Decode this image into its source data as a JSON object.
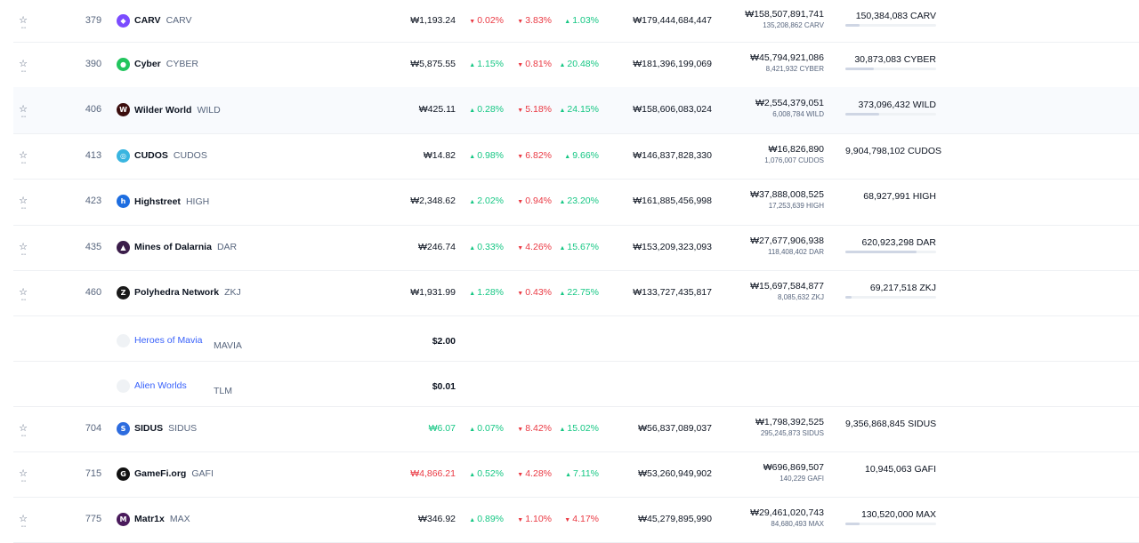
{
  "rows": [
    {
      "rank": "379",
      "name": "CARV",
      "symbol": "CARV",
      "logo_color": "#7b4cff",
      "logo_glyph": "◆",
      "price": "₩1,193.24",
      "price_color": "",
      "h1": "0.02%",
      "h1_dir": "down",
      "h24": "3.83%",
      "h24_dir": "down",
      "d7": "1.03%",
      "d7_dir": "up",
      "market_cap": "₩179,444,684,447",
      "volume": "₩158,507,891,741",
      "volume_coin": "135,208,862 CARV",
      "supply": "150,384,083 CARV",
      "supply_fill": 0.16,
      "highlight": false
    },
    {
      "rank": "390",
      "name": "Cyber",
      "symbol": "CYBER",
      "logo_color": "#22c55e",
      "logo_glyph": "●",
      "price": "₩5,875.55",
      "price_color": "",
      "h1": "1.15%",
      "h1_dir": "up",
      "h24": "0.81%",
      "h24_dir": "down",
      "d7": "20.48%",
      "d7_dir": "up",
      "market_cap": "₩181,396,199,069",
      "volume": "₩45,794,921,086",
      "volume_coin": "8,421,932 CYBER",
      "supply": "30,873,083 CYBER",
      "supply_fill": 0.31,
      "highlight": false
    },
    {
      "rank": "406",
      "name": "Wilder World",
      "symbol": "WILD",
      "logo_color": "#3b0d0d",
      "logo_glyph": "W",
      "price": "₩425.11",
      "price_color": "",
      "h1": "0.28%",
      "h1_dir": "up",
      "h24": "5.18%",
      "h24_dir": "down",
      "d7": "24.15%",
      "d7_dir": "up",
      "market_cap": "₩158,606,083,024",
      "volume": "₩2,554,379,051",
      "volume_coin": "6,008,784 WILD",
      "supply": "373,096,432 WILD",
      "supply_fill": 0.37,
      "highlight": true
    },
    {
      "rank": "413",
      "name": "CUDOS",
      "symbol": "CUDOS",
      "logo_color": "#39b5e0",
      "logo_glyph": "◎",
      "price": "₩14.82",
      "price_color": "",
      "h1": "0.98%",
      "h1_dir": "up",
      "h24": "6.82%",
      "h24_dir": "down",
      "d7": "9.66%",
      "d7_dir": "up",
      "market_cap": "₩146,837,828,330",
      "volume": "₩16,826,890",
      "volume_coin": "1,076,007 CUDOS",
      "supply": "9,904,798,102 CUDOS",
      "supply_fill": 0,
      "highlight": false
    },
    {
      "rank": "423",
      "name": "Highstreet",
      "symbol": "HIGH",
      "logo_color": "#1d6de0",
      "logo_glyph": "h",
      "price": "₩2,348.62",
      "price_color": "",
      "h1": "2.02%",
      "h1_dir": "up",
      "h24": "0.94%",
      "h24_dir": "down",
      "d7": "23.20%",
      "d7_dir": "up",
      "market_cap": "₩161,885,456,998",
      "volume": "₩37,888,008,525",
      "volume_coin": "17,253,639 HIGH",
      "supply": "68,927,991 HIGH",
      "supply_fill": 0,
      "highlight": false
    },
    {
      "rank": "435",
      "name": "Mines of Dalarnia",
      "symbol": "DAR",
      "logo_color": "#3b1d4a",
      "logo_glyph": "▲",
      "price": "₩246.74",
      "price_color": "",
      "h1": "0.33%",
      "h1_dir": "up",
      "h24": "4.26%",
      "h24_dir": "down",
      "d7": "15.67%",
      "d7_dir": "up",
      "market_cap": "₩153,209,323,093",
      "volume": "₩27,677,906,938",
      "volume_coin": "118,408,402 DAR",
      "supply": "620,923,298 DAR",
      "supply_fill": 0.78,
      "highlight": false
    },
    {
      "rank": "460",
      "name": "Polyhedra Network",
      "symbol": "ZKJ",
      "logo_color": "#1a1a1a",
      "logo_glyph": "Z",
      "price": "₩1,931.99",
      "price_color": "",
      "h1": "1.28%",
      "h1_dir": "up",
      "h24": "0.43%",
      "h24_dir": "down",
      "d7": "22.75%",
      "d7_dir": "up",
      "market_cap": "₩133,727,435,817",
      "volume": "₩15,697,584,877",
      "volume_coin": "8,085,632 ZKJ",
      "supply": "69,217,518 ZKJ",
      "supply_fill": 0.07,
      "highlight": false
    },
    {
      "rank": "704",
      "name": "SIDUS",
      "symbol": "SIDUS",
      "logo_color": "#2d6cdf",
      "logo_glyph": "S",
      "price": "₩6.07",
      "price_color": "green",
      "h1": "0.07%",
      "h1_dir": "up",
      "h24": "8.42%",
      "h24_dir": "down",
      "d7": "15.02%",
      "d7_dir": "up",
      "market_cap": "₩56,837,089,037",
      "volume": "₩1,798,392,525",
      "volume_coin": "295,245,873 SIDUS",
      "supply": "9,356,868,845 SIDUS",
      "supply_fill": 0,
      "highlight": false
    },
    {
      "rank": "715",
      "name": "GameFi.org",
      "symbol": "GAFI",
      "logo_color": "#111111",
      "logo_glyph": "G",
      "price": "₩4,866.21",
      "price_color": "red",
      "h1": "0.52%",
      "h1_dir": "up",
      "h24": "4.28%",
      "h24_dir": "down",
      "d7": "7.11%",
      "d7_dir": "up",
      "market_cap": "₩53,260,949,902",
      "volume": "₩696,869,507",
      "volume_coin": "140,229 GAFI",
      "supply": "10,945,063 GAFI",
      "supply_fill": 0,
      "highlight": false
    },
    {
      "rank": "775",
      "name": "Matr1x",
      "symbol": "MAX",
      "logo_color": "#4a1b5c",
      "logo_glyph": "M",
      "price": "₩346.92",
      "price_color": "",
      "h1": "0.89%",
      "h1_dir": "up",
      "h24": "1.10%",
      "h24_dir": "down",
      "d7": "4.17%",
      "d7_dir": "down",
      "market_cap": "₩45,279,895,990",
      "volume": "₩29,461,020,743",
      "volume_coin": "84,680,493 MAX",
      "supply": "130,520,000 MAX",
      "supply_fill": 0.16,
      "highlight": false
    }
  ],
  "untracked": [
    {
      "name": "Heroes of Mavia",
      "symbol": "MAVIA",
      "price": "$2.00"
    },
    {
      "name": "Alien Worlds",
      "symbol": "TLM",
      "price": "$0.01"
    }
  ],
  "icons": {
    "star": "star-icon",
    "up": "caret-up-icon",
    "down": "caret-down-icon"
  },
  "colors": {
    "up": "#16c784",
    "down": "#ea3943",
    "link": "#3861fb"
  }
}
